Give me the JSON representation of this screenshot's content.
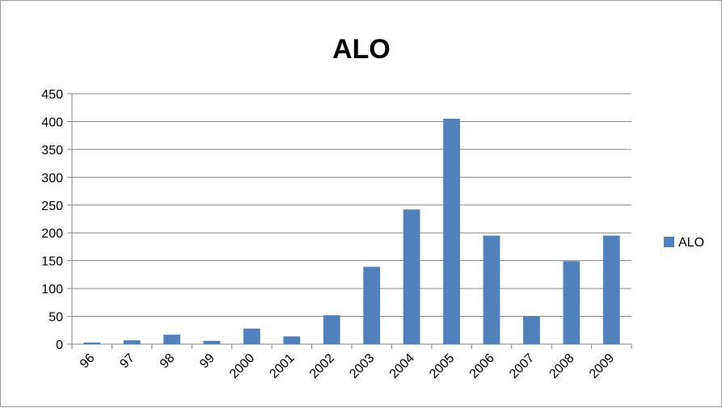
{
  "chart_data": {
    "type": "bar",
    "title": "ALO",
    "xlabel": "",
    "ylabel": "",
    "categories": [
      "96",
      "97",
      "98",
      "99",
      "2000",
      "2001",
      "2002",
      "2003",
      "2004",
      "2005",
      "2006",
      "2007",
      "2008",
      "2009"
    ],
    "series": [
      {
        "name": "ALO",
        "color": "#4f81bd",
        "values": [
          3,
          7,
          17,
          6,
          28,
          14,
          52,
          139,
          242,
          405,
          195,
          50,
          149,
          195
        ]
      }
    ],
    "ylim": [
      0,
      450
    ],
    "yticks": [
      0,
      50,
      100,
      150,
      200,
      250,
      300,
      350,
      400,
      450
    ],
    "grid": true,
    "legend_position": "right"
  }
}
